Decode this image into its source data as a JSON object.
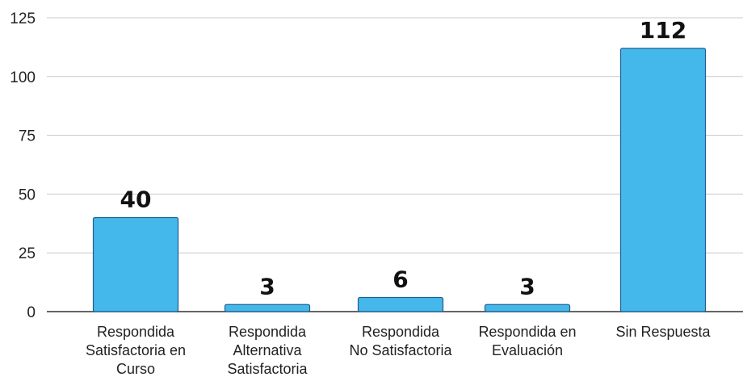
{
  "chart_data": {
    "type": "bar",
    "categories": [
      [
        "Respondida",
        "Satisfactoria en",
        "Curso"
      ],
      [
        "Respondida",
        "Alternativa",
        "Satisfactoria"
      ],
      [
        "Respondida",
        "No Satisfactoria"
      ],
      [
        "Respondida en",
        "Evaluación"
      ],
      [
        "Sin Respuesta"
      ]
    ],
    "values": [
      40,
      3,
      6,
      3,
      112
    ],
    "data_labels": [
      "40",
      "3",
      "6",
      "3",
      "112"
    ],
    "yticks": [
      "0",
      "25",
      "50",
      "75",
      "100",
      "125"
    ],
    "ylim": [
      0,
      125
    ],
    "title": "",
    "xlabel": "",
    "ylabel": "",
    "grid": true,
    "colors": {
      "bar_fill": "#45B8EB",
      "bar_stroke": "#1f5f8f"
    }
  }
}
